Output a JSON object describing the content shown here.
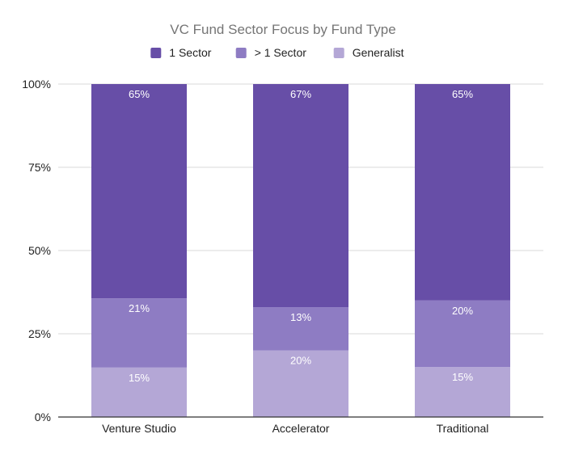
{
  "chart_data": {
    "type": "bar",
    "stacked": true,
    "percent_stacked": true,
    "title": "VC Fund Sector Focus by Fund Type",
    "xlabel": "",
    "ylabel": "",
    "categories": [
      "Venture Studio",
      "Accelerator",
      "Traditional"
    ],
    "series": [
      {
        "name": "Generalist",
        "values": [
          15,
          20,
          15
        ],
        "labels": [
          "15%",
          "20%",
          "15%"
        ],
        "color": "#b4a7d6"
      },
      {
        "name": "> 1 Sector",
        "values": [
          21,
          13,
          20
        ],
        "labels": [
          "21%",
          "13%",
          "20%"
        ],
        "color": "#8e7cc3"
      },
      {
        "name": "1 Sector",
        "values": [
          65,
          67,
          65
        ],
        "labels": [
          "65%",
          "67%",
          "65%"
        ],
        "color": "#674ea7"
      }
    ],
    "legend_order": [
      "1 Sector",
      "> 1 Sector",
      "Generalist"
    ],
    "legend_position": "top",
    "y_ticks": [
      0,
      25,
      50,
      75,
      100
    ],
    "y_tick_labels": [
      "0%",
      "25%",
      "50%",
      "75%",
      "100%"
    ],
    "ylim": [
      0,
      100
    ],
    "grid": true,
    "colors": {
      "title": "#757575",
      "text": "#222222",
      "grid": "#d9d9d9",
      "axis": "#333333",
      "data_label": "#ffffff"
    }
  }
}
